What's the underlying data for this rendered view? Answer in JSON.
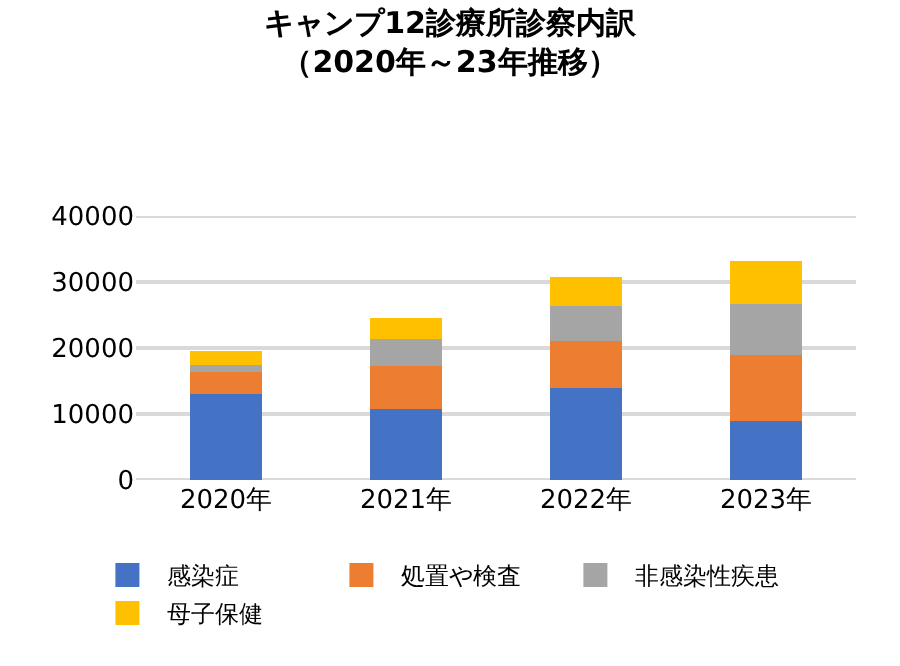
{
  "chart_data": {
    "type": "bar",
    "title": "キャンプ12診療所診察内訳",
    "subtitle": "（2020年～23年推移）",
    "categories": [
      "2020年",
      "2021年",
      "2022年",
      "2023年"
    ],
    "series": [
      {
        "name": "感染症",
        "color": "#4472c4",
        "values": [
          13100,
          10800,
          14000,
          9000
        ]
      },
      {
        "name": "処置や検査",
        "color": "#ed7d31",
        "values": [
          3200,
          6500,
          7100,
          10000
        ]
      },
      {
        "name": "非感染性疾患",
        "color": "#a5a5a5",
        "values": [
          1200,
          4100,
          5300,
          7700
        ]
      },
      {
        "name": "母子保健",
        "color": "#ffc000",
        "values": [
          2100,
          3200,
          4400,
          6500
        ]
      }
    ],
    "stacked": true,
    "ylim": [
      0,
      40000
    ],
    "yticks": [
      0,
      10000,
      20000,
      30000,
      40000
    ],
    "grid": "y",
    "legend": "bottom"
  }
}
